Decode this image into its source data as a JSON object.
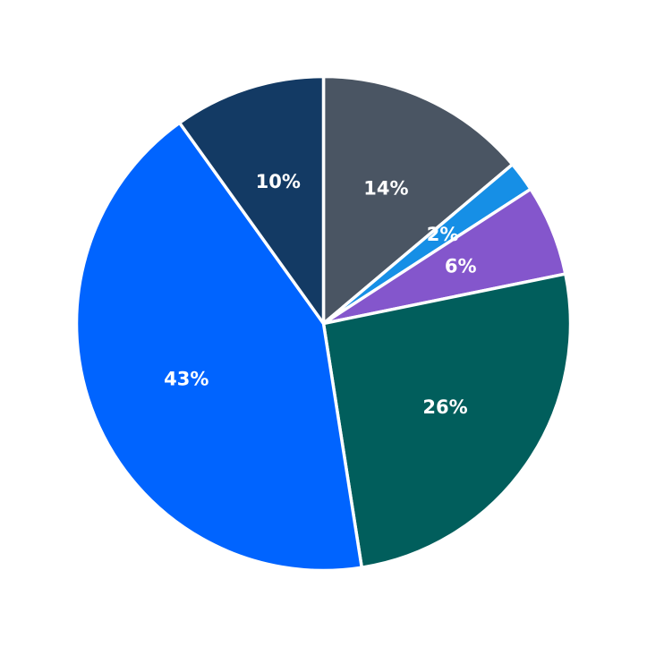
{
  "chart_data": {
    "type": "pie",
    "title": "",
    "legend": "none",
    "start": "top",
    "direction": "clockwise",
    "slices": [
      {
        "value": 14,
        "label": "14%",
        "color": "#4a5563"
      },
      {
        "value": 2,
        "label": "2%",
        "color": "#168fe6"
      },
      {
        "value": 6,
        "label": "6%",
        "color": "#8456cc"
      },
      {
        "value": 26,
        "label": "26%",
        "color": "#015e5c"
      },
      {
        "value": 43,
        "label": "43%",
        "color": "#0064ff"
      },
      {
        "value": 10,
        "label": "10%",
        "color": "#133a64"
      }
    ]
  }
}
